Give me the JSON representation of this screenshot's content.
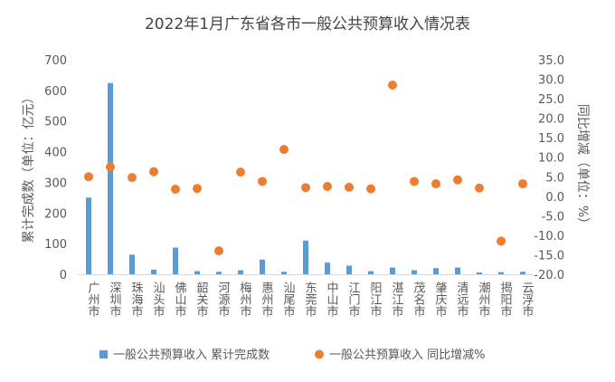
{
  "chart_data": {
    "type": "bar",
    "title": "2022年1月广东省各市一般公共预算收入情况表",
    "categories": [
      "广州市",
      "深圳市",
      "珠海市",
      "汕头市",
      "佛山市",
      "韶关市",
      "河源市",
      "梅州市",
      "惠州市",
      "汕尾市",
      "东莞市",
      "中山市",
      "江门市",
      "阳江市",
      "湛江市",
      "茂名市",
      "肇庆市",
      "清远市",
      "潮州市",
      "揭阳市",
      "云浮市"
    ],
    "series": [
      {
        "name": "一般公共预算收入 累计完成数",
        "type": "bar",
        "axis": "left",
        "color": "#5B9BD5",
        "values": [
          250,
          624,
          64,
          15,
          87,
          10,
          8,
          13,
          48,
          8,
          110,
          38,
          28,
          10,
          22,
          13,
          20,
          22,
          6,
          7,
          8
        ]
      },
      {
        "name": "一般公共预算收入 同比增减%",
        "type": "scatter",
        "axis": "right",
        "color": "#ED7D31",
        "values": [
          5.0,
          7.5,
          4.8,
          6.3,
          1.8,
          2.0,
          -14.0,
          6.2,
          3.8,
          12.0,
          2.2,
          2.5,
          2.3,
          1.9,
          28.5,
          3.8,
          3.2,
          4.2,
          2.1,
          -11.5,
          3.2
        ]
      }
    ],
    "y_left": {
      "label": "累计完成数（单位：亿元）",
      "ylim": [
        0,
        700
      ],
      "ticks": [
        "0",
        "100",
        "200",
        "300",
        "400",
        "500",
        "600",
        "700"
      ]
    },
    "y_right": {
      "label": "同比增减（单位：%）",
      "ylim": [
        -20,
        35
      ],
      "ticks": [
        "-20.0",
        "-15.0",
        "-10.0",
        "-5.0",
        "0.0",
        "5.0",
        "10.0",
        "15.0",
        "20.0",
        "25.0",
        "30.0",
        "35.0"
      ]
    },
    "grid": false,
    "legend_position": "bottom"
  }
}
